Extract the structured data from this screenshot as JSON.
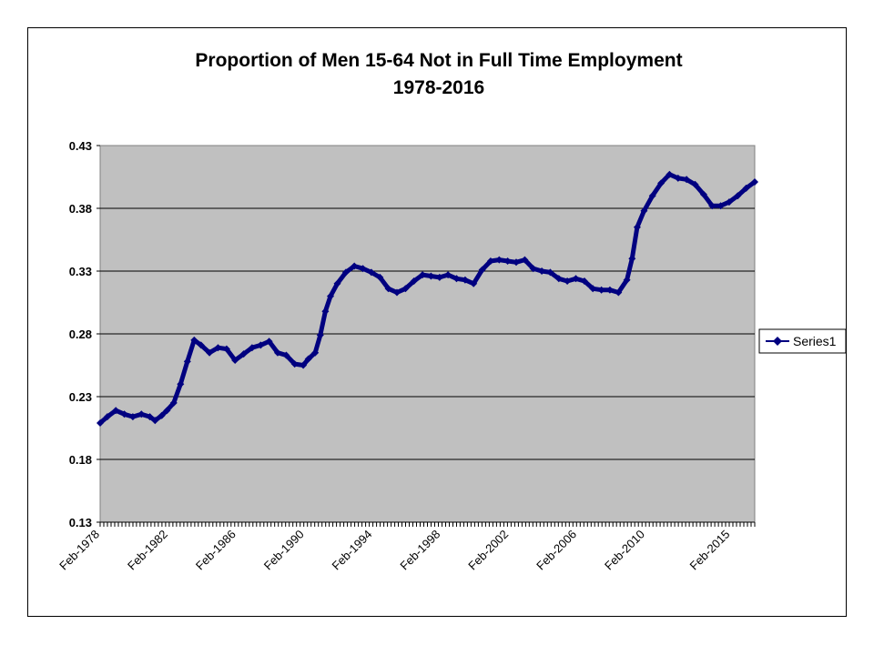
{
  "chart_data": {
    "type": "line",
    "title": "Proportion of Men 15-64 Not in Full Time Employment",
    "subtitle": "1978-2016",
    "xlabel": "",
    "ylabel": "",
    "x_tick_labels": [
      "Feb-1978",
      "Feb-1982",
      "Feb-1986",
      "Feb-1990",
      "Feb-1994",
      "Feb-1998",
      "Feb-2002",
      "Feb-2006",
      "Feb-2010",
      "Feb-2015"
    ],
    "y_tick_labels": [
      "0.43",
      "0.38",
      "0.33",
      "0.28",
      "0.23",
      "0.18",
      "0.13"
    ],
    "ylim": [
      0.13,
      0.43
    ],
    "xlim": [
      1978.08,
      2016.5
    ],
    "grid": "horizontal",
    "legend_position": "right",
    "colors": {
      "plot_bg": "#c0c0c0",
      "series": "#000080",
      "gridline": "#000000"
    },
    "series": [
      {
        "name": "Series1",
        "marker": "diamond",
        "x": [
          1978.08,
          1978.5,
          1979.0,
          1979.5,
          1980.0,
          1980.5,
          1981.0,
          1981.3,
          1981.7,
          1982.0,
          1982.4,
          1982.8,
          1983.2,
          1983.6,
          1984.0,
          1984.5,
          1985.0,
          1985.5,
          1986.0,
          1986.5,
          1987.0,
          1987.5,
          1988.0,
          1988.5,
          1989.0,
          1989.5,
          1990.0,
          1990.3,
          1990.7,
          1991.0,
          1991.3,
          1991.6,
          1992.0,
          1992.5,
          1993.0,
          1993.5,
          1994.0,
          1994.5,
          1995.0,
          1995.5,
          1996.0,
          1996.5,
          1997.0,
          1997.5,
          1998.0,
          1998.5,
          1999.0,
          1999.5,
          2000.0,
          2000.5,
          2001.0,
          2001.5,
          2002.0,
          2002.5,
          2003.0,
          2003.5,
          2004.0,
          2004.5,
          2005.0,
          2005.5,
          2006.0,
          2006.5,
          2007.0,
          2007.5,
          2008.0,
          2008.5,
          2009.0,
          2009.3,
          2009.6,
          2010.0,
          2010.5,
          2011.0,
          2011.5,
          2012.0,
          2012.5,
          2013.0,
          2013.5,
          2014.0,
          2014.5,
          2015.0,
          2015.5,
          2016.0,
          2016.5
        ],
        "values": [
          0.209,
          0.214,
          0.219,
          0.216,
          0.214,
          0.216,
          0.214,
          0.211,
          0.215,
          0.219,
          0.225,
          0.24,
          0.258,
          0.275,
          0.271,
          0.265,
          0.269,
          0.268,
          0.259,
          0.264,
          0.269,
          0.271,
          0.274,
          0.265,
          0.263,
          0.256,
          0.255,
          0.26,
          0.265,
          0.279,
          0.298,
          0.31,
          0.32,
          0.329,
          0.334,
          0.332,
          0.329,
          0.325,
          0.316,
          0.313,
          0.316,
          0.322,
          0.327,
          0.326,
          0.325,
          0.327,
          0.324,
          0.323,
          0.32,
          0.331,
          0.338,
          0.339,
          0.338,
          0.337,
          0.339,
          0.332,
          0.33,
          0.329,
          0.324,
          0.322,
          0.324,
          0.322,
          0.316,
          0.315,
          0.315,
          0.313,
          0.323,
          0.34,
          0.365,
          0.378,
          0.39,
          0.4,
          0.407,
          0.404,
          0.403,
          0.399,
          0.391,
          0.382,
          0.382,
          0.385,
          0.39,
          0.396,
          0.401
        ]
      }
    ]
  }
}
